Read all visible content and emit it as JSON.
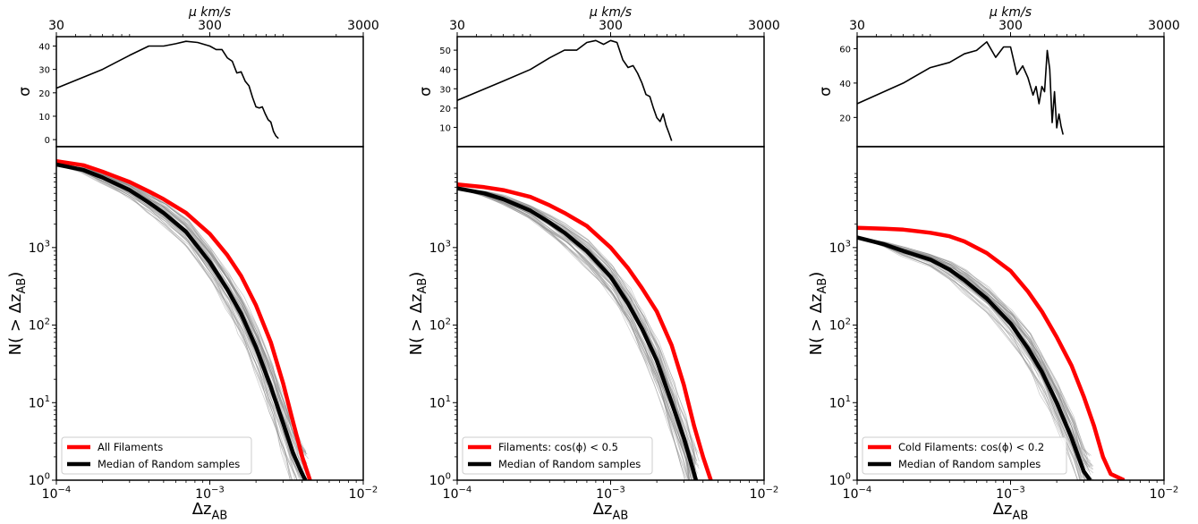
{
  "chart_data": [
    {
      "type": "line",
      "panel": "left",
      "top": {
        "xlabel": "μ km/s",
        "ylabel": "σ",
        "xscale": "log",
        "xlim": [
          30,
          3000
        ],
        "xticks": [
          "30",
          "300",
          "3000"
        ],
        "ylim": [
          -3,
          44
        ],
        "yticks": [
          "0",
          "10",
          "20",
          "30",
          "40"
        ],
        "series": [
          {
            "color": "#000000",
            "x": [
              30,
              60,
              90,
              120,
              150,
              180,
              210,
              250,
              300,
              330,
              360,
              390,
              420,
              450,
              480,
              510,
              540,
              570,
              600,
              630,
              660,
              690,
              720,
              750,
              780,
              810,
              840
            ],
            "y": [
              22,
              30,
              36,
              40,
              40,
              41,
              42,
              41.5,
              40,
              38.5,
              38.5,
              35,
              33.5,
              28.5,
              29,
              25,
              23,
              18,
              14,
              13.5,
              14,
              11,
              8.5,
              7.5,
              3.5,
              1.5,
              0.5
            ]
          }
        ]
      },
      "bottom": {
        "xlabel": "Δz_AB",
        "ylabel": "N(>Δz_AB)",
        "xscale": "log",
        "yscale": "log",
        "xlim": [
          0.0001,
          0.01
        ],
        "ylim": [
          1,
          20000
        ],
        "xticks": [
          "10^-4",
          "10^-3",
          "10^-2"
        ],
        "yticks": [
          "10^0",
          "10^1",
          "10^2",
          "10^3"
        ],
        "legend": "lower-left",
        "series": [
          {
            "name": "All Filaments",
            "color": "#ff0000",
            "x": [
              0.0001,
              0.00015,
              0.0002,
              0.0003,
              0.0004,
              0.0005,
              0.0007,
              0.001,
              0.0013,
              0.0016,
              0.002,
              0.0025,
              0.003,
              0.0035,
              0.004,
              0.0045
            ],
            "y": [
              13000,
              11500,
              9500,
              7000,
              5300,
              4200,
              2800,
              1500,
              800,
              430,
              180,
              60,
              18,
              5.5,
              2,
              1
            ]
          },
          {
            "name": "Median of Random samples",
            "color": "#000000",
            "x": [
              0.0001,
              0.00015,
              0.0002,
              0.0003,
              0.0004,
              0.0005,
              0.0007,
              0.001,
              0.0013,
              0.0016,
              0.002,
              0.0025,
              0.003,
              0.0035,
              0.004,
              0.0042
            ],
            "y": [
              11800,
              10000,
              8000,
              5500,
              3800,
              2800,
              1600,
              650,
              290,
              140,
              52,
              16,
              5.5,
              2.2,
              1.2,
              1
            ]
          }
        ]
      }
    },
    {
      "type": "line",
      "panel": "middle",
      "top": {
        "xlabel": "μ km/s",
        "ylabel": "σ",
        "xscale": "log",
        "xlim": [
          30,
          3000
        ],
        "xticks": [
          "30",
          "300",
          "3000"
        ],
        "ylim": [
          0,
          57
        ],
        "yticks": [
          "10",
          "20",
          "30",
          "40",
          "50"
        ],
        "series": [
          {
            "color": "#000000",
            "x": [
              30,
              60,
              90,
              120,
              150,
              180,
              210,
              240,
              270,
              300,
              330,
              360,
              390,
              420,
              450,
              480,
              510,
              540,
              570,
              600,
              630,
              660,
              690,
              720,
              750
            ],
            "y": [
              24,
              34,
              40,
              46,
              50,
              50,
              54,
              55,
              53,
              55,
              54,
              45,
              41,
              42,
              38,
              33,
              27,
              26,
              20,
              15,
              13,
              17,
              11,
              7,
              3
            ]
          }
        ]
      },
      "bottom": {
        "xlabel": "Δz_AB",
        "ylabel": "N(>Δz_AB)",
        "xscale": "log",
        "yscale": "log",
        "xlim": [
          0.0001,
          0.01
        ],
        "ylim": [
          1,
          20000
        ],
        "xticks": [
          "10^-4",
          "10^-3",
          "10^-2"
        ],
        "yticks": [
          "10^0",
          "10^1",
          "10^2",
          "10^3"
        ],
        "legend": "lower-left",
        "series": [
          {
            "name": "Filaments: cos(ϕ) < 0.5",
            "color": "#ff0000",
            "x": [
              0.0001,
              0.00015,
              0.0002,
              0.0003,
              0.0004,
              0.0005,
              0.0007,
              0.001,
              0.0013,
              0.0016,
              0.002,
              0.0025,
              0.003,
              0.0035,
              0.004,
              0.0045
            ],
            "y": [
              6500,
              6000,
              5500,
              4500,
              3500,
              2800,
              1900,
              1000,
              540,
              300,
              150,
              55,
              17,
              5,
              2,
              1
            ]
          },
          {
            "name": "Median of Random samples",
            "color": "#000000",
            "x": [
              0.0001,
              0.00015,
              0.0002,
              0.0003,
              0.0004,
              0.0005,
              0.0007,
              0.001,
              0.0013,
              0.0016,
              0.002,
              0.0025,
              0.003,
              0.0034,
              0.0036
            ],
            "y": [
              5800,
              5000,
              4200,
              3000,
              2100,
              1550,
              900,
              420,
              190,
              90,
              35,
              10,
              3.5,
              1.5,
              1
            ]
          }
        ]
      }
    },
    {
      "type": "line",
      "panel": "right",
      "top": {
        "xlabel": "μ km/s",
        "ylabel": "σ",
        "xscale": "log",
        "xlim": [
          30,
          3000
        ],
        "xticks": [
          "30",
          "300",
          "3000"
        ],
        "ylim": [
          3,
          67
        ],
        "yticks": [
          "20",
          "40",
          "60"
        ],
        "series": [
          {
            "color": "#000000",
            "x": [
              30,
              60,
              90,
              120,
              150,
              180,
              210,
              240,
              270,
              300,
              330,
              360,
              390,
              420,
              440,
              460,
              480,
              500,
              520,
              540,
              560,
              580,
              600,
              620,
              640,
              660
            ],
            "y": [
              28,
              40,
              49,
              52,
              57,
              59,
              64,
              55,
              61,
              61,
              45,
              50,
              43,
              33,
              38,
              28,
              38,
              35,
              59,
              48,
              17,
              35,
              14,
              22,
              15,
              10
            ]
          }
        ]
      },
      "bottom": {
        "xlabel": "Δz_AB",
        "ylabel": "N(>Δz_AB)",
        "xscale": "log",
        "yscale": "log",
        "xlim": [
          0.0001,
          0.01
        ],
        "ylim": [
          1,
          20000
        ],
        "xticks": [
          "10^-4",
          "10^-3",
          "10^-2"
        ],
        "yticks": [
          "10^0",
          "10^1",
          "10^2",
          "10^3"
        ],
        "legend": "lower-left",
        "series": [
          {
            "name": "Cold Filaments: cos(ϕ) < 0.2",
            "color": "#ff0000",
            "x": [
              0.0001,
              0.00015,
              0.0002,
              0.0003,
              0.0004,
              0.0005,
              0.0007,
              0.001,
              0.0013,
              0.0016,
              0.002,
              0.0025,
              0.003,
              0.0035,
              0.004,
              0.0045,
              0.0055
            ],
            "y": [
              1800,
              1750,
              1700,
              1550,
              1400,
              1200,
              850,
              500,
              270,
              150,
              70,
              30,
              12,
              5,
              2,
              1.2,
              1
            ]
          },
          {
            "name": "Median of Random samples",
            "color": "#000000",
            "x": [
              0.0001,
              0.00015,
              0.0002,
              0.0003,
              0.0004,
              0.0005,
              0.0007,
              0.001,
              0.0013,
              0.0016,
              0.002,
              0.0025,
              0.003,
              0.0033
            ],
            "y": [
              1350,
              1100,
              900,
              700,
              520,
              380,
              220,
              105,
              50,
              25,
              10,
              3.5,
              1.3,
              1
            ]
          }
        ]
      }
    }
  ]
}
